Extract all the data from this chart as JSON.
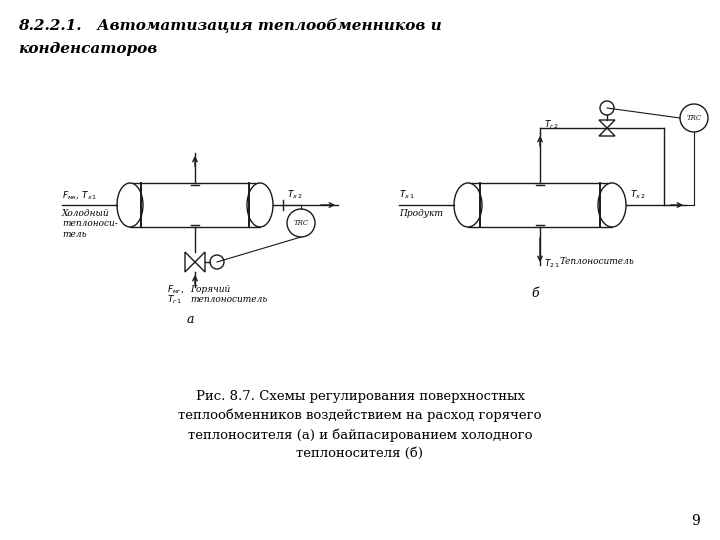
{
  "title_line1": "8.2.2.1.   Автоматизация теплообменников и",
  "title_line2": "конденсаторов",
  "caption": "Рис. 8.7. Схемы регулирования поверхностных\nтеплообменников воздействием на расход горячего\nтеплоносителя (а) и байпасированием холодного\nтеплоносителя (б)",
  "page_number": "9",
  "bg_color": "#ffffff",
  "line_color": "#1a1a1a",
  "label_a_left": "$F_{мк}$, $T_{х\\ 1}$",
  "label_a_cold": "Холодный\nтеплоноси-\nтель",
  "label_a_right": "$T_{х\\ 2}$",
  "label_a_hot1": "$F_{мг}$,",
  "label_a_hot2": "$T_{г\\ 1}$",
  "label_a_hot3": "Горячий\nтеплоноситель",
  "label_a": "а",
  "label_b_left1": "$T_{х\\ 1}$",
  "label_b_left2": "Продукт",
  "label_b_right": "$T_{х\\ 2}$",
  "label_b_tg2": "$T_{г\\ 2}$",
  "label_b_t21": "$T_{2\\ 1}$",
  "label_b_heat": "Теплоноситель",
  "label_b": "б"
}
